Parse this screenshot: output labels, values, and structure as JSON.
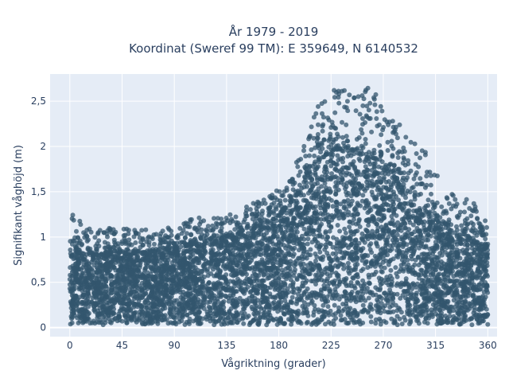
{
  "chart_data": {
    "type": "scatter",
    "title_line1": "År 1979 - 2019",
    "title_line2": "Koordinat (Sweref 99 TM): E 359649, N 6140532",
    "xlabel": "Vågriktning (grader)",
    "ylabel": "Signifikant våghöjd (m)",
    "xlim": [
      -17,
      368
    ],
    "ylim": [
      -0.1,
      2.8
    ],
    "x_ticks": [
      0,
      45,
      90,
      135,
      180,
      225,
      270,
      315,
      360
    ],
    "x_tick_labels": [
      "0",
      "45",
      "90",
      "135",
      "180",
      "225",
      "270",
      "315",
      "360"
    ],
    "y_ticks": [
      0,
      0.5,
      1,
      1.5,
      2,
      2.5
    ],
    "y_tick_labels": [
      "0",
      "0,5",
      "1",
      "1,5",
      "2",
      "2,5"
    ],
    "grid": true,
    "marker_color": "#33566e",
    "plot_background": "#e5ecf6",
    "envelope": {
      "x": [
        0,
        10,
        20,
        30,
        45,
        60,
        75,
        90,
        105,
        120,
        135,
        150,
        165,
        180,
        195,
        210,
        225,
        240,
        255,
        270,
        285,
        300,
        315,
        330,
        345,
        360
      ],
      "y_max": [
        1.32,
        1.18,
        1.12,
        1.1,
        1.12,
        1.08,
        1.08,
        1.12,
        1.2,
        1.24,
        1.24,
        1.32,
        1.44,
        1.55,
        1.85,
        2.4,
        2.62,
        2.68,
        2.68,
        2.55,
        2.3,
        2.05,
        1.78,
        1.52,
        1.42,
        1.22
      ],
      "dense_top": [
        0.85,
        0.82,
        0.8,
        0.8,
        0.82,
        0.82,
        0.84,
        0.88,
        0.92,
        0.96,
        1.0,
        1.06,
        1.14,
        1.22,
        1.45,
        1.8,
        1.95,
        1.98,
        1.92,
        1.8,
        1.62,
        1.38,
        1.2,
        1.05,
        0.95,
        0.88
      ]
    }
  }
}
